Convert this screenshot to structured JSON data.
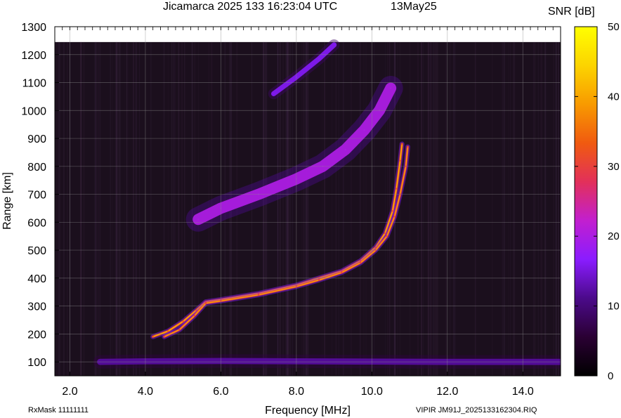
{
  "header": {
    "title": "Jicamarca 2025 133 16:23:04 UTC",
    "date": "13May25"
  },
  "footer": {
    "rx_mask": "RxMask 11111111",
    "file_id": "VIPIR  JM91J_2025133162304.RIQ"
  },
  "colorbar": {
    "title": "SNR [dB]",
    "min": 0,
    "max": 50,
    "ticks": [
      0,
      10,
      20,
      30,
      40,
      50
    ],
    "colormap": [
      "#000000",
      "#2a0033",
      "#4b0a8a",
      "#8a1cff",
      "#c21fcf",
      "#e2305a",
      "#f05a10",
      "#f89a00",
      "#fcd400",
      "#ffff00"
    ]
  },
  "chart_data": {
    "type": "heatmap",
    "subtype": "ionogram",
    "xlabel": "Frequency [MHz]",
    "ylabel": "Range [km]",
    "xlim": [
      1.6,
      15.0
    ],
    "ylim": [
      50,
      1300
    ],
    "xticks": [
      2.0,
      4.0,
      6.0,
      8.0,
      10.0,
      12.0,
      14.0
    ],
    "xtick_labels": [
      "2.0",
      "4.0",
      "6.0",
      "8.0",
      "10.0",
      "12.0",
      "14.0"
    ],
    "yticks": [
      100,
      200,
      300,
      400,
      500,
      600,
      700,
      800,
      900,
      1000,
      1100,
      1200,
      1300
    ],
    "grid": true,
    "data_upper_range_km": 1245,
    "background": "#1b0f1d",
    "series": [
      {
        "name": "",
        "snr_db": 32,
        "width_km": 8,
        "points": [
          [
            4.2,
            190
          ],
          [
            4.6,
            210
          ],
          [
            5.0,
            245
          ],
          [
            5.35,
            285
          ],
          [
            5.6,
            315
          ],
          [
            6.0,
            323
          ],
          [
            7.0,
            345
          ],
          [
            8.0,
            375
          ],
          [
            8.6,
            400
          ],
          [
            9.2,
            425
          ],
          [
            9.7,
            462
          ],
          [
            10.1,
            510
          ],
          [
            10.35,
            560
          ],
          [
            10.55,
            640
          ],
          [
            10.65,
            720
          ],
          [
            10.75,
            820
          ],
          [
            10.8,
            880
          ]
        ]
      },
      {
        "name": "",
        "snr_db": 30,
        "width_km": 8,
        "points": [
          [
            4.5,
            190
          ],
          [
            4.9,
            215
          ],
          [
            5.3,
            265
          ],
          [
            5.6,
            310
          ],
          [
            6.0,
            318
          ],
          [
            7.0,
            340
          ],
          [
            8.0,
            370
          ],
          [
            8.6,
            393
          ],
          [
            9.2,
            420
          ],
          [
            9.7,
            455
          ],
          [
            10.1,
            500
          ],
          [
            10.4,
            550
          ],
          [
            10.6,
            620
          ],
          [
            10.75,
            700
          ],
          [
            10.9,
            800
          ],
          [
            10.95,
            870
          ]
        ]
      },
      {
        "name": "",
        "snr_db": 20,
        "width_km": 40,
        "points": [
          [
            5.4,
            610
          ],
          [
            6.0,
            650
          ],
          [
            7.0,
            700
          ],
          [
            8.0,
            755
          ],
          [
            8.7,
            800
          ],
          [
            9.3,
            860
          ],
          [
            9.8,
            930
          ],
          [
            10.2,
            1000
          ],
          [
            10.5,
            1080
          ]
        ]
      },
      {
        "name": "",
        "snr_db": 16,
        "width_km": 18,
        "points": [
          [
            7.4,
            1060
          ],
          [
            8.0,
            1120
          ],
          [
            8.6,
            1185
          ],
          [
            9.0,
            1235
          ]
        ]
      },
      {
        "name": "",
        "snr_db": 12,
        "width_km": 22,
        "points": [
          [
            2.8,
            100
          ],
          [
            4.0,
            102
          ],
          [
            6.0,
            103
          ],
          [
            8.0,
            102
          ],
          [
            10.0,
            101
          ],
          [
            12.0,
            100
          ],
          [
            15.0,
            100
          ]
        ]
      }
    ]
  }
}
